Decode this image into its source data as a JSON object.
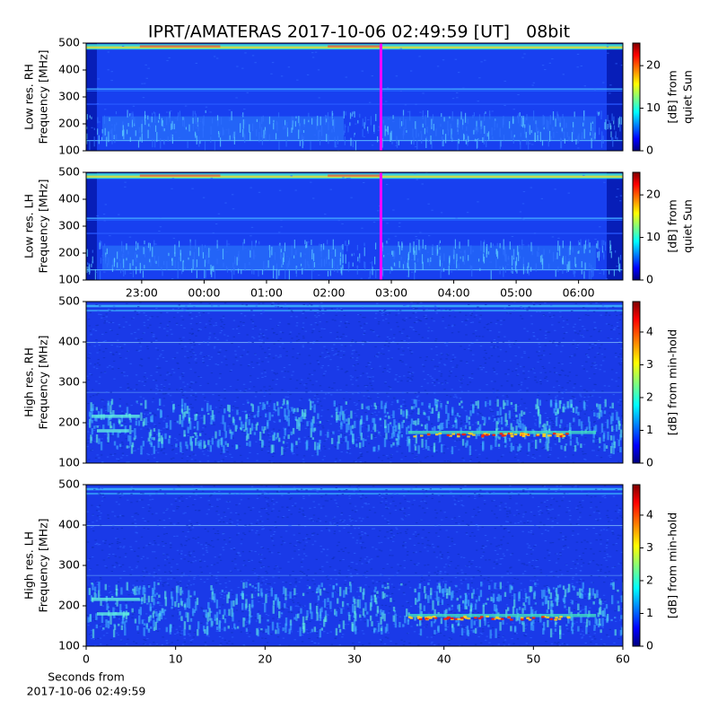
{
  "title": "IPRT/AMATERAS 2017-10-06 02:49:59 [UT]   08bit",
  "chart_data": [
    {
      "type": "spectrogram",
      "ylabel": [
        "Low res. RH",
        "Frequency [MHz]"
      ],
      "ylim": [
        100,
        500
      ],
      "yticks": [
        100,
        200,
        300,
        400,
        500
      ],
      "xlim": [
        22.11,
        30.71
      ],
      "marker_x": 26.833,
      "marker_color": "#ff00ff",
      "colormap": "jet",
      "colorbar": {
        "label": [
          "[dB] from",
          "quiet Sun"
        ],
        "lim": [
          0,
          25.3
        ],
        "ticks": [
          0,
          10,
          20
        ]
      }
    },
    {
      "type": "spectrogram",
      "ylabel": [
        "Low res. LH",
        "Frequency [MHz]"
      ],
      "ylim": [
        100,
        500
      ],
      "yticks": [
        100,
        200,
        300,
        400,
        500
      ],
      "xlim": [
        22.11,
        30.71
      ],
      "xticks": [
        {
          "value": 23,
          "label": "23:00"
        },
        {
          "value": 24,
          "label": "00:00"
        },
        {
          "value": 25,
          "label": "01:00"
        },
        {
          "value": 26,
          "label": "02:00"
        },
        {
          "value": 27,
          "label": "03:00"
        },
        {
          "value": 28,
          "label": "04:00"
        },
        {
          "value": 29,
          "label": "05:00"
        },
        {
          "value": 30,
          "label": "06:00"
        }
      ],
      "marker_x": 26.833,
      "marker_color": "#ff00ff",
      "colormap": "jet",
      "colorbar": {
        "label": [
          "[dB] from",
          "quiet Sun"
        ],
        "lim": [
          0,
          25.3
        ],
        "ticks": [
          0,
          10,
          20
        ]
      }
    },
    {
      "type": "spectrogram",
      "ylabel": [
        "High res. RH",
        "Frequency [MHz]"
      ],
      "ylim": [
        100,
        500
      ],
      "yticks": [
        100,
        200,
        300,
        400,
        500
      ],
      "xlim": [
        0,
        60
      ],
      "colormap": "jet",
      "colorbar": {
        "label": [
          "[dB] from min-hold"
        ],
        "lim": [
          0,
          4.93
        ],
        "ticks": [
          0,
          1,
          2,
          3,
          4
        ]
      }
    },
    {
      "type": "spectrogram",
      "ylabel": [
        "High res. LH",
        "Frequency [MHz]"
      ],
      "ylim": [
        100,
        500
      ],
      "yticks": [
        100,
        200,
        300,
        400,
        500
      ],
      "xlim": [
        0,
        60
      ],
      "xticks": [
        0,
        10,
        20,
        30,
        40,
        50,
        60
      ],
      "xlabel": [
        "Seconds from",
        "2017-10-06 02:49:59"
      ],
      "colormap": "jet",
      "colorbar": {
        "label": [
          "[dB] from min-hold"
        ],
        "lim": [
          0,
          4.93
        ],
        "ticks": [
          0,
          1,
          2,
          3,
          4
        ]
      }
    }
  ]
}
